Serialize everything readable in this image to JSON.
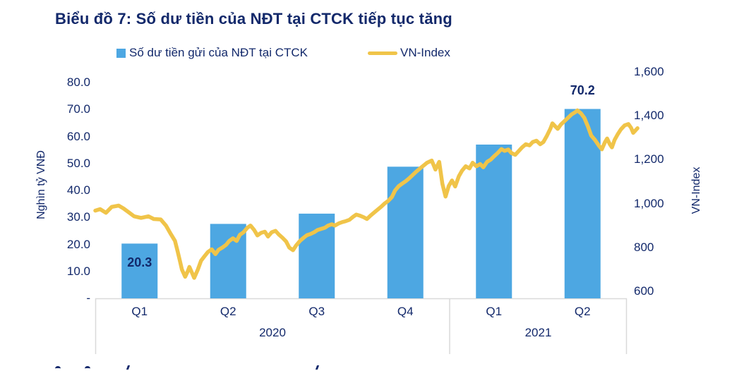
{
  "title": "Biểu đồ 7: Số dư tiền của NĐT tại CTCK tiếp tục tăng",
  "colors": {
    "text_navy": "#13296B",
    "bar_blue": "#4DA7E2",
    "line_yellow": "#F0C449",
    "axis_gray": "#D9D9D9"
  },
  "legend": {
    "bar": {
      "label": "Số dư tiền gửi của NĐT tại CTCK",
      "swatch_color": "#4DA7E2"
    },
    "line": {
      "label": "VN-Index",
      "swatch_color": "#F0C449"
    }
  },
  "left_axis": {
    "title": "Nghìn tỷ VNĐ",
    "ticks": [
      "80.0",
      "70.0",
      "60.0",
      "50.0",
      "40.0",
      "30.0",
      "20.0",
      "10.0",
      "-"
    ],
    "tick_values": [
      80,
      70,
      60,
      50,
      40,
      30,
      20,
      10,
      0
    ],
    "min": 0,
    "max": 80
  },
  "right_axis": {
    "title": "VN-Index",
    "ticks": [
      "1,600",
      "1,400",
      "1,200",
      "1,000",
      "800",
      "600"
    ],
    "tick_values": [
      1600,
      1400,
      1200,
      1000,
      800,
      600
    ],
    "min": 600,
    "max": 1600
  },
  "x_axis": {
    "quarters": [
      "Q1",
      "Q2",
      "Q3",
      "Q4",
      "Q1",
      "Q2"
    ],
    "years": [
      {
        "label": "2020",
        "slots": [
          0,
          1,
          2,
          3
        ]
      },
      {
        "label": "2021",
        "slots": [
          4,
          5
        ]
      }
    ]
  },
  "chart_data": {
    "type": "bar+line",
    "title": "Biểu đồ 7: Số dư tiền của NĐT tại CTCK tiếp tục tăng",
    "categories": [
      "Q1 2020",
      "Q2 2020",
      "Q3 2020",
      "Q4 2020",
      "Q1 2021",
      "Q2 2021"
    ],
    "bar_series": {
      "name": "Số dư tiền gửi của NĐT tại CTCK",
      "unit": "Nghìn tỷ VNĐ",
      "values": [
        20.3,
        27.6,
        31.4,
        48.8,
        57.0,
        70.2
      ],
      "data_labels": [
        {
          "index": 0,
          "text": "20.3",
          "placement": "inside-top"
        },
        {
          "index": 5,
          "text": "70.2",
          "placement": "above"
        }
      ],
      "axis": "left",
      "ylim": [
        0,
        80
      ]
    },
    "line_series": {
      "name": "VN-Index",
      "axis": "right",
      "ylim": [
        600,
        1600
      ],
      "points_note": "pos = fraction of x-axis width from Jan-2020 start; value = VN-Index level",
      "points": [
        [
          0.0,
          968
        ],
        [
          0.009,
          975
        ],
        [
          0.02,
          958
        ],
        [
          0.031,
          985
        ],
        [
          0.044,
          991
        ],
        [
          0.053,
          978
        ],
        [
          0.062,
          962
        ],
        [
          0.073,
          942
        ],
        [
          0.086,
          935
        ],
        [
          0.1,
          942
        ],
        [
          0.11,
          930
        ],
        [
          0.123,
          928
        ],
        [
          0.133,
          900
        ],
        [
          0.142,
          862
        ],
        [
          0.15,
          830
        ],
        [
          0.155,
          782
        ],
        [
          0.159,
          742
        ],
        [
          0.163,
          700
        ],
        [
          0.169,
          667
        ],
        [
          0.174,
          692
        ],
        [
          0.177,
          712
        ],
        [
          0.182,
          685
        ],
        [
          0.186,
          662
        ],
        [
          0.193,
          700
        ],
        [
          0.199,
          740
        ],
        [
          0.206,
          762
        ],
        [
          0.212,
          780
        ],
        [
          0.219,
          792
        ],
        [
          0.226,
          770
        ],
        [
          0.232,
          790
        ],
        [
          0.239,
          800
        ],
        [
          0.246,
          812
        ],
        [
          0.252,
          830
        ],
        [
          0.259,
          842
        ],
        [
          0.266,
          830
        ],
        [
          0.272,
          858
        ],
        [
          0.279,
          870
        ],
        [
          0.286,
          890
        ],
        [
          0.292,
          900
        ],
        [
          0.299,
          880
        ],
        [
          0.305,
          855
        ],
        [
          0.312,
          867
        ],
        [
          0.319,
          872
        ],
        [
          0.325,
          850
        ],
        [
          0.332,
          870
        ],
        [
          0.339,
          876
        ],
        [
          0.345,
          860
        ],
        [
          0.352,
          845
        ],
        [
          0.359,
          828
        ],
        [
          0.365,
          800
        ],
        [
          0.372,
          788
        ],
        [
          0.378,
          810
        ],
        [
          0.385,
          830
        ],
        [
          0.392,
          845
        ],
        [
          0.398,
          856
        ],
        [
          0.405,
          862
        ],
        [
          0.412,
          870
        ],
        [
          0.418,
          880
        ],
        [
          0.425,
          885
        ],
        [
          0.432,
          890
        ],
        [
          0.438,
          900
        ],
        [
          0.445,
          906
        ],
        [
          0.451,
          900
        ],
        [
          0.458,
          910
        ],
        [
          0.465,
          916
        ],
        [
          0.471,
          920
        ],
        [
          0.478,
          926
        ],
        [
          0.485,
          940
        ],
        [
          0.491,
          950
        ],
        [
          0.498,
          945
        ],
        [
          0.505,
          938
        ],
        [
          0.511,
          930
        ],
        [
          0.518,
          946
        ],
        [
          0.525,
          960
        ],
        [
          0.531,
          972
        ],
        [
          0.538,
          986
        ],
        [
          0.544,
          1000
        ],
        [
          0.551,
          1012
        ],
        [
          0.558,
          1030
        ],
        [
          0.564,
          1060
        ],
        [
          0.571,
          1080
        ],
        [
          0.578,
          1092
        ],
        [
          0.584,
          1102
        ],
        [
          0.591,
          1116
        ],
        [
          0.598,
          1132
        ],
        [
          0.604,
          1146
        ],
        [
          0.611,
          1160
        ],
        [
          0.617,
          1172
        ],
        [
          0.624,
          1186
        ],
        [
          0.633,
          1196
        ],
        [
          0.64,
          1155
        ],
        [
          0.647,
          1190
        ],
        [
          0.653,
          1090
        ],
        [
          0.659,
          1032
        ],
        [
          0.665,
          1080
        ],
        [
          0.671,
          1105
        ],
        [
          0.677,
          1078
        ],
        [
          0.684,
          1125
        ],
        [
          0.69,
          1150
        ],
        [
          0.697,
          1170
        ],
        [
          0.704,
          1160
        ],
        [
          0.71,
          1186
        ],
        [
          0.717,
          1170
        ],
        [
          0.724,
          1180
        ],
        [
          0.73,
          1165
        ],
        [
          0.737,
          1190
        ],
        [
          0.744,
          1200
        ],
        [
          0.75,
          1215
        ],
        [
          0.757,
          1230
        ],
        [
          0.764,
          1248
        ],
        [
          0.77,
          1240
        ],
        [
          0.777,
          1246
        ],
        [
          0.783,
          1230
        ],
        [
          0.79,
          1222
        ],
        [
          0.797,
          1240
        ],
        [
          0.803,
          1256
        ],
        [
          0.81,
          1270
        ],
        [
          0.817,
          1265
        ],
        [
          0.823,
          1280
        ],
        [
          0.83,
          1286
        ],
        [
          0.837,
          1270
        ],
        [
          0.843,
          1280
        ],
        [
          0.85,
          1310
        ],
        [
          0.856,
          1340
        ],
        [
          0.86,
          1365
        ],
        [
          0.866,
          1350
        ],
        [
          0.87,
          1340
        ],
        [
          0.876,
          1360
        ],
        [
          0.883,
          1376
        ],
        [
          0.89,
          1392
        ],
        [
          0.896,
          1406
        ],
        [
          0.903,
          1416
        ],
        [
          0.907,
          1424
        ],
        [
          0.914,
          1410
        ],
        [
          0.92,
          1390
        ],
        [
          0.927,
          1350
        ],
        [
          0.933,
          1310
        ],
        [
          0.94,
          1290
        ],
        [
          0.947,
          1265
        ],
        [
          0.953,
          1247
        ],
        [
          0.959,
          1280
        ],
        [
          0.963,
          1296
        ],
        [
          0.968,
          1270
        ],
        [
          0.972,
          1256
        ],
        [
          0.977,
          1290
        ],
        [
          0.983,
          1316
        ],
        [
          0.989,
          1338
        ],
        [
          0.996,
          1356
        ],
        [
          1.003,
          1362
        ],
        [
          1.008,
          1345
        ],
        [
          1.012,
          1322
        ],
        [
          1.016,
          1332
        ],
        [
          1.02,
          1343
        ]
      ]
    },
    "legend_position": "top",
    "grid": false
  }
}
